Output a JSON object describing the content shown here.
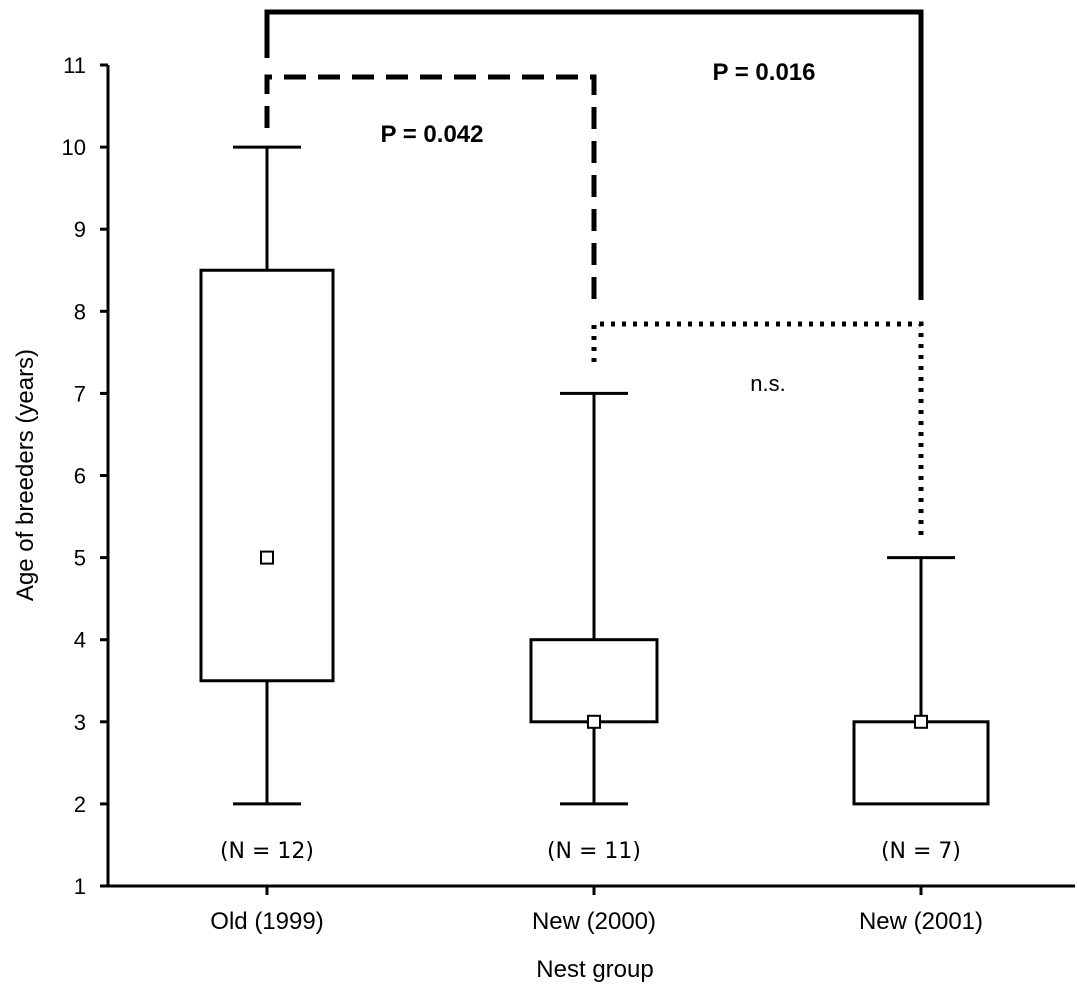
{
  "chart_data": {
    "type": "box",
    "xlabel": "Nest group",
    "ylabel": "Age of breeders (years)",
    "ylim": [
      1,
      11
    ],
    "yticks": [
      1,
      2,
      3,
      4,
      5,
      6,
      7,
      8,
      9,
      10,
      11
    ],
    "grid": false,
    "categories": [
      "Old (1999)",
      "New (2000)",
      "New (2001)"
    ],
    "boxes": [
      {
        "category": "Old (1999)",
        "whisker_low": 2,
        "q1": 3.5,
        "median": 5,
        "q3": 8.5,
        "whisker_high": 10,
        "n_label": "(N = 12)"
      },
      {
        "category": "New (2000)",
        "whisker_low": 2,
        "q1": 3,
        "median": 3,
        "q3": 4,
        "whisker_high": 7,
        "n_label": "(N = 11)"
      },
      {
        "category": "New (2001)",
        "whisker_low": 2,
        "q1": 2,
        "median": 3,
        "q3": 3,
        "whisker_high": 5,
        "n_label": "(N = 7)"
      }
    ],
    "comparisons": [
      {
        "from": "Old (1999)",
        "to": "New (2000)",
        "style": "dashed",
        "label": "P = 0.042",
        "bold": true
      },
      {
        "from": "Old (1999)",
        "to": "New (2001)",
        "style": "solid",
        "label": "P = 0.016",
        "bold": true
      },
      {
        "from": "New (2000)",
        "to": "New (2001)",
        "style": "dotted",
        "label": "n.s.",
        "bold": false
      }
    ]
  }
}
